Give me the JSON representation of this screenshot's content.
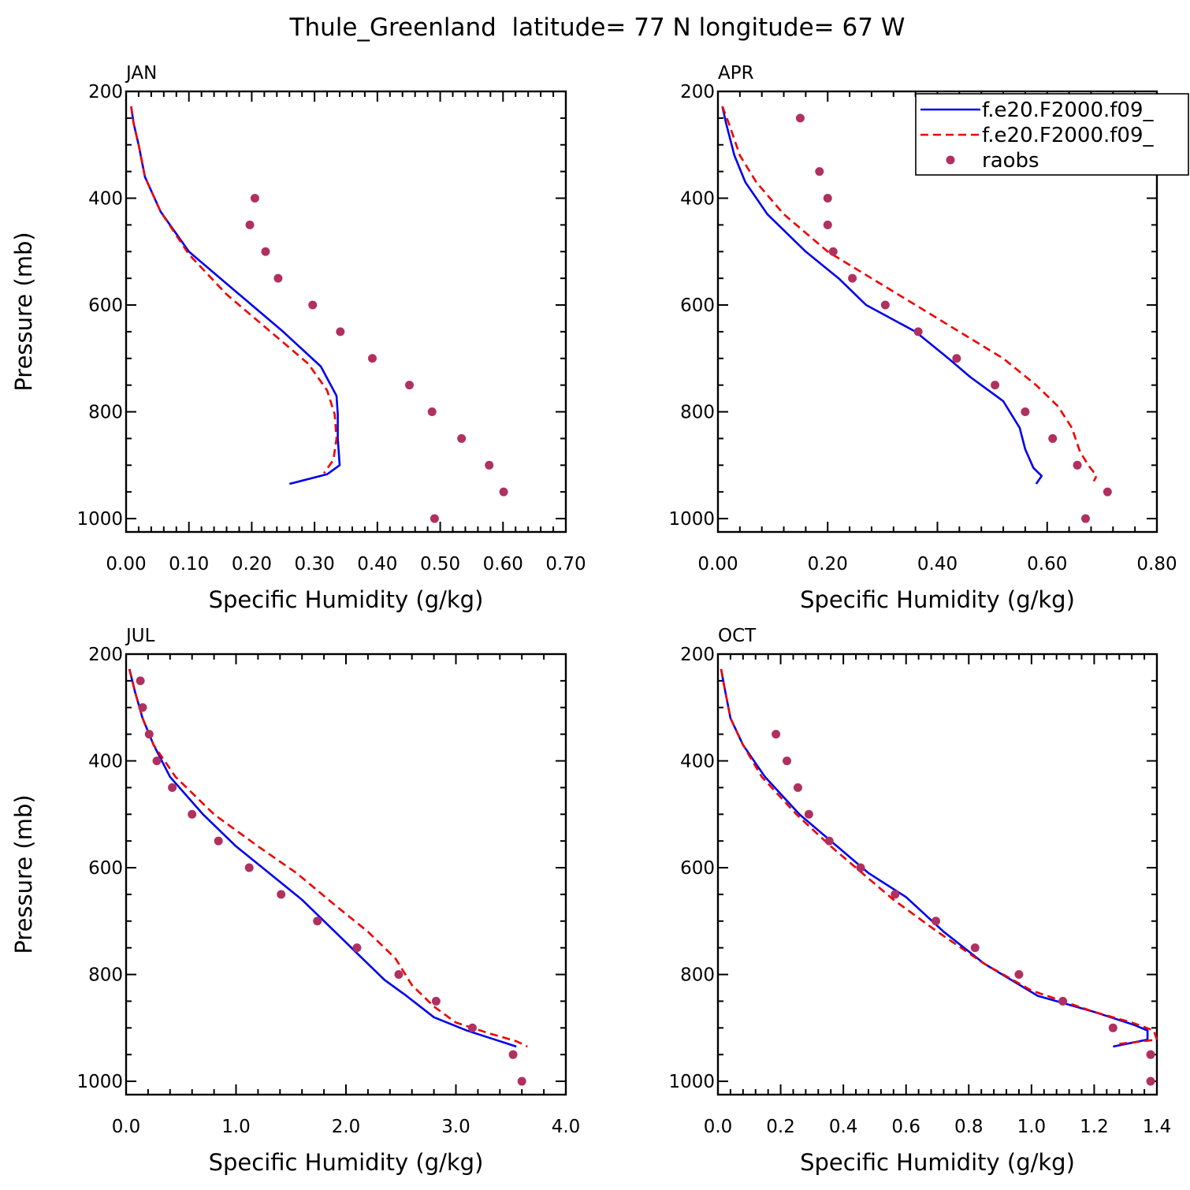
{
  "figure_title": "Thule_Greenland  latitude= 77 N longitude= 67 W",
  "colors": {
    "model_1": "#0000ee",
    "model_2": "#ee0000",
    "raobs": "#b03060",
    "frame": "#000000"
  },
  "legend": {
    "placement": "top-right of APR panel",
    "entries": [
      "f.e20.F2000.f09_",
      "f.e20.F2000.f09_",
      "raobs"
    ]
  },
  "chart_data": [
    {
      "type": "line",
      "panel_label": "JAN",
      "xlabel": "Specific Humidity (g/kg)",
      "ylabel": "Pressure (mb)",
      "xlim": [
        0,
        0.7
      ],
      "ylim": [
        1000,
        200
      ],
      "y_reversed": true,
      "x_ticks": [
        "0.00",
        "0.10",
        "0.20",
        "0.30",
        "0.40",
        "0.50",
        "0.60",
        "0.70"
      ],
      "y_ticks": [
        "200",
        "400",
        "600",
        "800",
        "1000"
      ],
      "series": [
        {
          "name": "f.e20.F2000.f09_",
          "style": "solid",
          "points": [
            [
              0.008,
              228
            ],
            [
              0.012,
              260
            ],
            [
              0.02,
              300
            ],
            [
              0.03,
              360
            ],
            [
              0.055,
              425
            ],
            [
              0.1,
              500
            ],
            [
              0.15,
              550
            ],
            [
              0.2,
              600
            ],
            [
              0.25,
              650
            ],
            [
              0.31,
              715
            ],
            [
              0.335,
              770
            ],
            [
              0.337,
              805
            ],
            [
              0.337,
              850
            ],
            [
              0.34,
              900
            ],
            [
              0.32,
              917
            ],
            [
              0.26,
              935
            ]
          ]
        },
        {
          "name": "f.e20.F2000.f09_",
          "style": "dashed",
          "points": [
            [
              0.008,
              228
            ],
            [
              0.012,
              260
            ],
            [
              0.02,
              300
            ],
            [
              0.03,
              360
            ],
            [
              0.055,
              425
            ],
            [
              0.1,
              505
            ],
            [
              0.16,
              580
            ],
            [
              0.23,
              650
            ],
            [
              0.29,
              710
            ],
            [
              0.32,
              760
            ],
            [
              0.332,
              805
            ],
            [
              0.335,
              850
            ],
            [
              0.33,
              890
            ],
            [
              0.315,
              915
            ]
          ]
        },
        {
          "name": "raobs",
          "style": "markers",
          "points": [
            [
              0.205,
              400
            ],
            [
              0.197,
              450
            ],
            [
              0.222,
              500
            ],
            [
              0.242,
              550
            ],
            [
              0.297,
              600
            ],
            [
              0.341,
              650
            ],
            [
              0.392,
              700
            ],
            [
              0.451,
              750
            ],
            [
              0.487,
              800
            ],
            [
              0.534,
              850
            ],
            [
              0.578,
              900
            ],
            [
              0.601,
              950
            ],
            [
              0.491,
              1000
            ]
          ]
        }
      ]
    },
    {
      "type": "line",
      "panel_label": "APR",
      "xlabel": "Specific Humidity (g/kg)",
      "ylabel": "",
      "xlim": [
        0,
        0.8
      ],
      "ylim": [
        1000,
        200
      ],
      "y_reversed": true,
      "x_ticks": [
        "0.00",
        "0.20",
        "0.40",
        "0.60",
        "0.80"
      ],
      "y_ticks": [
        "200",
        "400",
        "600",
        "800",
        "1000"
      ],
      "series": [
        {
          "name": "f.e20.F2000.f09_",
          "style": "solid",
          "points": [
            [
              0.008,
              228
            ],
            [
              0.015,
              260
            ],
            [
              0.03,
              320
            ],
            [
              0.05,
              370
            ],
            [
              0.09,
              430
            ],
            [
              0.16,
              500
            ],
            [
              0.22,
              550
            ],
            [
              0.27,
              600
            ],
            [
              0.36,
              650
            ],
            [
              0.42,
              700
            ],
            [
              0.46,
              735
            ],
            [
              0.52,
              780
            ],
            [
              0.55,
              830
            ],
            [
              0.56,
              870
            ],
            [
              0.575,
              905
            ],
            [
              0.59,
              920
            ],
            [
              0.58,
              935
            ]
          ]
        },
        {
          "name": "f.e20.F2000.f09_",
          "style": "dashed",
          "points": [
            [
              0.008,
              228
            ],
            [
              0.02,
              260
            ],
            [
              0.04,
              320
            ],
            [
              0.07,
              370
            ],
            [
              0.12,
              430
            ],
            [
              0.2,
              500
            ],
            [
              0.28,
              550
            ],
            [
              0.36,
              600
            ],
            [
              0.44,
              650
            ],
            [
              0.52,
              700
            ],
            [
              0.58,
              750
            ],
            [
              0.62,
              790
            ],
            [
              0.645,
              830
            ],
            [
              0.66,
              875
            ],
            [
              0.675,
              900
            ],
            [
              0.69,
              920
            ],
            [
              0.685,
              930
            ]
          ]
        },
        {
          "name": "raobs",
          "style": "markers",
          "points": [
            [
              0.15,
              250
            ],
            [
              0.185,
              350
            ],
            [
              0.2,
              400
            ],
            [
              0.2,
              450
            ],
            [
              0.21,
              500
            ],
            [
              0.245,
              550
            ],
            [
              0.305,
              600
            ],
            [
              0.365,
              650
            ],
            [
              0.435,
              700
            ],
            [
              0.505,
              750
            ],
            [
              0.56,
              800
            ],
            [
              0.61,
              850
            ],
            [
              0.655,
              900
            ],
            [
              0.71,
              950
            ],
            [
              0.67,
              1000
            ]
          ]
        }
      ]
    },
    {
      "type": "line",
      "panel_label": "JUL",
      "xlabel": "Specific Humidity (g/kg)",
      "ylabel": "Pressure (mb)",
      "xlim": [
        0,
        4
      ],
      "ylim": [
        1000,
        200
      ],
      "y_reversed": true,
      "x_ticks": [
        "0.0",
        "1.0",
        "2.0",
        "3.0",
        "4.0"
      ],
      "y_ticks": [
        "200",
        "400",
        "600",
        "800",
        "1000"
      ],
      "series": [
        {
          "name": "f.e20.F2000.f09_",
          "style": "solid",
          "points": [
            [
              0.03,
              228
            ],
            [
              0.08,
              270
            ],
            [
              0.15,
              320
            ],
            [
              0.25,
              370
            ],
            [
              0.4,
              430
            ],
            [
              0.7,
              500
            ],
            [
              1.0,
              560
            ],
            [
              1.3,
              610
            ],
            [
              1.6,
              660
            ],
            [
              1.9,
              720
            ],
            [
              2.1,
              760
            ],
            [
              2.35,
              810
            ],
            [
              2.55,
              840
            ],
            [
              2.8,
              880
            ],
            [
              3.1,
              905
            ],
            [
              3.4,
              925
            ],
            [
              3.55,
              935
            ]
          ]
        },
        {
          "name": "f.e20.F2000.f09_",
          "style": "dashed",
          "points": [
            [
              0.03,
              228
            ],
            [
              0.08,
              270
            ],
            [
              0.15,
              320
            ],
            [
              0.25,
              370
            ],
            [
              0.45,
              430
            ],
            [
              0.8,
              500
            ],
            [
              1.2,
              560
            ],
            [
              1.55,
              610
            ],
            [
              1.9,
              670
            ],
            [
              2.2,
              720
            ],
            [
              2.45,
              770
            ],
            [
              2.6,
              820
            ],
            [
              2.8,
              860
            ],
            [
              3.0,
              890
            ],
            [
              3.3,
              910
            ],
            [
              3.55,
              925
            ],
            [
              3.65,
              935
            ]
          ]
        },
        {
          "name": "raobs",
          "style": "markers",
          "points": [
            [
              0.13,
              250
            ],
            [
              0.15,
              300
            ],
            [
              0.21,
              350
            ],
            [
              0.28,
              400
            ],
            [
              0.42,
              450
            ],
            [
              0.6,
              500
            ],
            [
              0.84,
              550
            ],
            [
              1.12,
              600
            ],
            [
              1.41,
              650
            ],
            [
              1.74,
              700
            ],
            [
              2.1,
              750
            ],
            [
              2.48,
              800
            ],
            [
              2.82,
              850
            ],
            [
              3.15,
              900
            ],
            [
              3.52,
              950
            ],
            [
              3.6,
              1000
            ]
          ]
        }
      ]
    },
    {
      "type": "line",
      "panel_label": "OCT",
      "xlabel": "Specific Humidity (g/kg)",
      "ylabel": "",
      "xlim": [
        0,
        1.4
      ],
      "ylim": [
        1000,
        200
      ],
      "y_reversed": true,
      "x_ticks": [
        "0.0",
        "0.2",
        "0.4",
        "0.6",
        "0.8",
        "1.0",
        "1.2",
        "1.4"
      ],
      "y_ticks": [
        "200",
        "400",
        "600",
        "800",
        "1000"
      ],
      "series": [
        {
          "name": "f.e20.F2000.f09_",
          "style": "solid",
          "points": [
            [
              0.01,
              228
            ],
            [
              0.02,
              260
            ],
            [
              0.04,
              320
            ],
            [
              0.08,
              370
            ],
            [
              0.15,
              430
            ],
            [
              0.26,
              500
            ],
            [
              0.38,
              560
            ],
            [
              0.48,
              610
            ],
            [
              0.6,
              655
            ],
            [
              0.72,
              720
            ],
            [
              0.85,
              780
            ],
            [
              1.02,
              840
            ],
            [
              1.2,
              870
            ],
            [
              1.33,
              895
            ],
            [
              1.37,
              905
            ],
            [
              1.37,
              922
            ],
            [
              1.26,
              935
            ]
          ]
        },
        {
          "name": "f.e20.F2000.f09_",
          "style": "dashed",
          "points": [
            [
              0.01,
              228
            ],
            [
              0.02,
              260
            ],
            [
              0.04,
              320
            ],
            [
              0.08,
              370
            ],
            [
              0.14,
              430
            ],
            [
              0.25,
              500
            ],
            [
              0.36,
              560
            ],
            [
              0.46,
              610
            ],
            [
              0.56,
              660
            ],
            [
              0.7,
              720
            ],
            [
              0.85,
              780
            ],
            [
              1.0,
              830
            ],
            [
              1.2,
              870
            ],
            [
              1.32,
              890
            ],
            [
              1.39,
              905
            ],
            [
              1.4,
              922
            ],
            [
              1.28,
              930
            ]
          ]
        },
        {
          "name": "raobs",
          "style": "markers",
          "points": [
            [
              0.185,
              350
            ],
            [
              0.22,
              400
            ],
            [
              0.255,
              450
            ],
            [
              0.29,
              500
            ],
            [
              0.355,
              550
            ],
            [
              0.455,
              600
            ],
            [
              0.565,
              650
            ],
            [
              0.695,
              700
            ],
            [
              0.82,
              750
            ],
            [
              0.96,
              800
            ],
            [
              1.1,
              850
            ],
            [
              1.26,
              900
            ],
            [
              1.38,
              950
            ],
            [
              1.38,
              1000
            ]
          ]
        }
      ]
    }
  ]
}
